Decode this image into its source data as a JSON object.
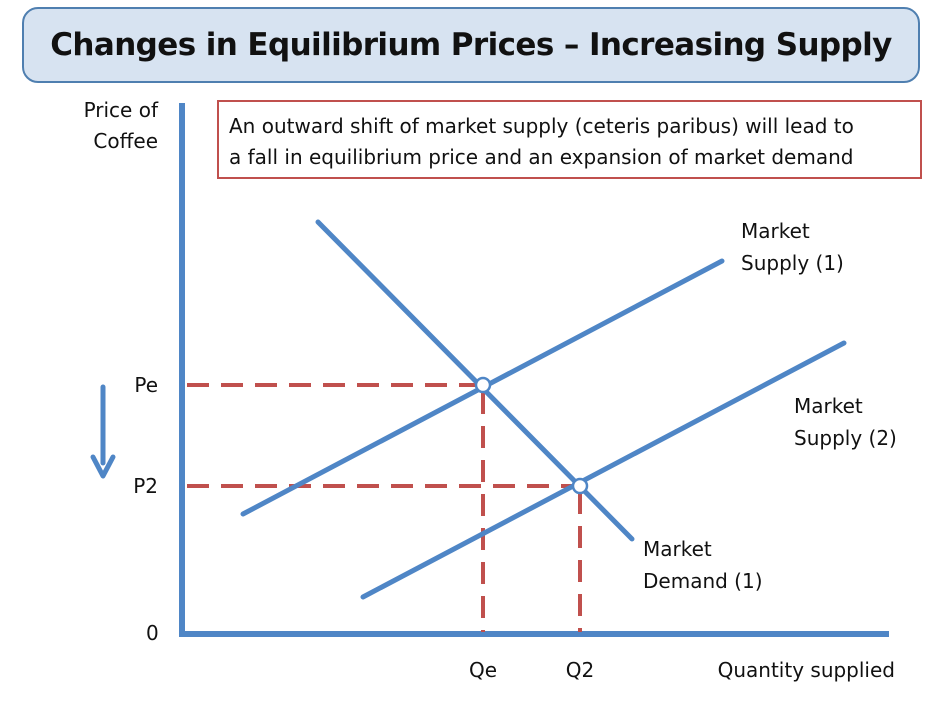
{
  "title": "Changes in Equilibrium Prices – Increasing Supply",
  "annotation": {
    "line1": "An outward shift of market supply (ceteris paribus) will lead to",
    "line2": "a fall in equilibrium price and an expansion of market demand"
  },
  "axes": {
    "y_label_line1": "Price of",
    "y_label_line2": "Coffee",
    "x_label": "Quantity supplied",
    "origin_label": "0"
  },
  "price_labels": {
    "initial": "Pe",
    "new": "P2"
  },
  "quantity_labels": {
    "initial": "Qe",
    "new": "Q2"
  },
  "curves": {
    "supply_1": {
      "line1": "Market",
      "line2": "Supply (1)"
    },
    "supply_2": {
      "line1": "Market",
      "line2": "Supply (2)"
    },
    "demand_1": {
      "line1": "Market",
      "line2": "Demand (1)"
    }
  },
  "colors": {
    "curve": "#4f86c6",
    "guide_dashed": "#c0504d",
    "annotation_border": "#c0504d",
    "title_fill": "#d7e3f1",
    "title_border": "#4f7fb0"
  },
  "shift_arrow_icon": "down-arrow-icon"
}
